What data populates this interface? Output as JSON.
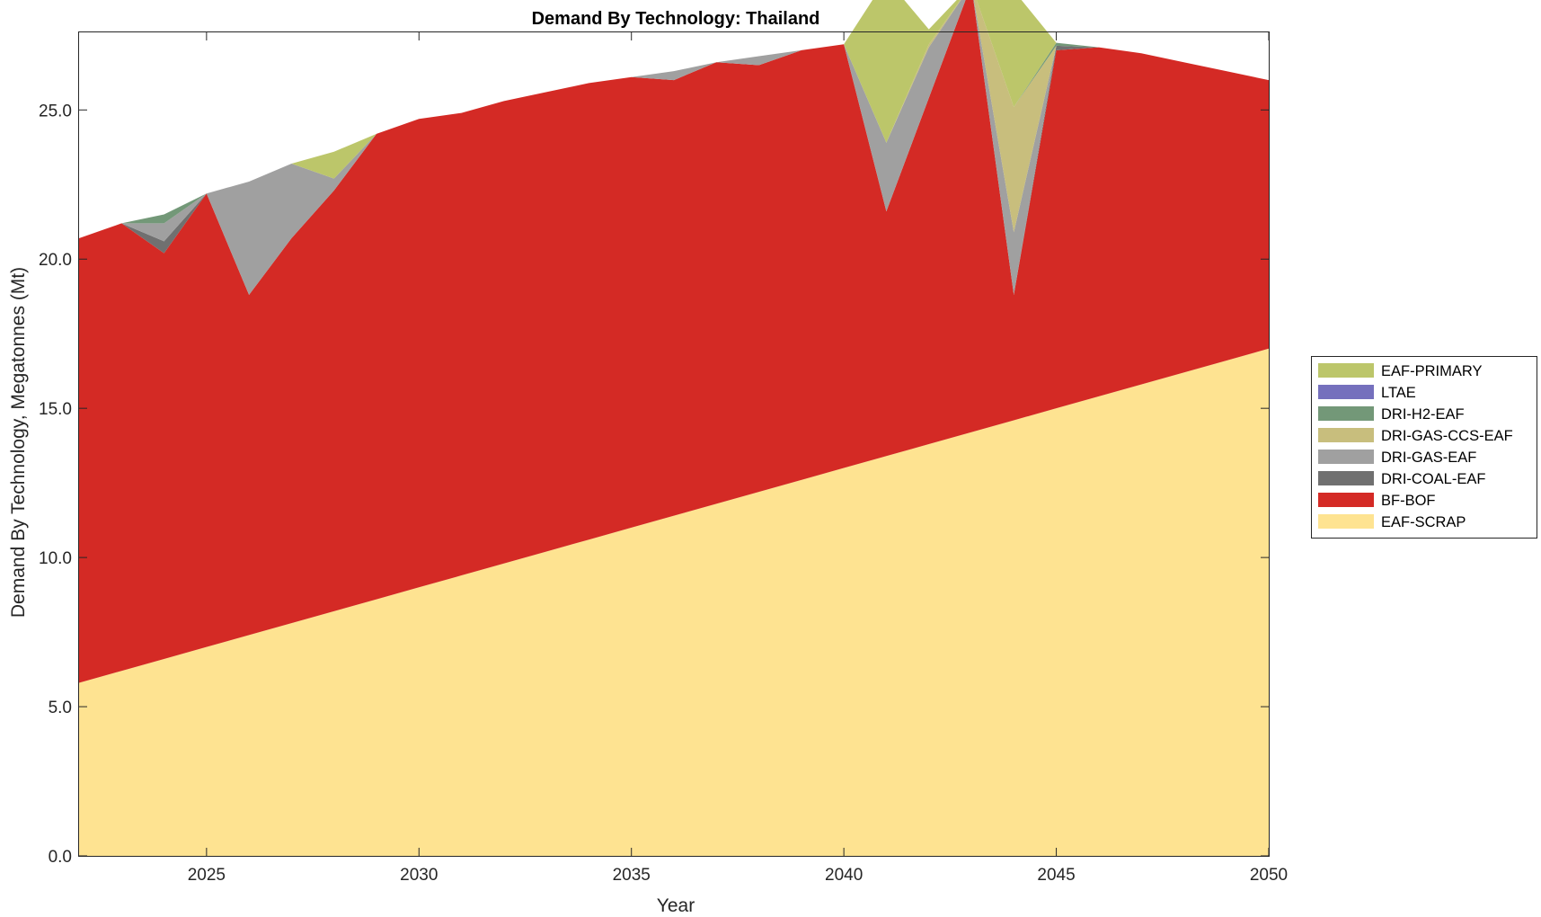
{
  "chart_data": {
    "type": "area",
    "stacked": true,
    "title": "Demand By Technology: Thailand",
    "xlabel": "Year",
    "ylabel": "Demand By Technology, Megatonnes (Mt)",
    "xlim": [
      2022,
      2050
    ],
    "ylim": [
      0,
      27.6
    ],
    "xticks": [
      2025,
      2030,
      2035,
      2040,
      2045,
      2050
    ],
    "yticks": [
      0,
      5,
      10,
      15,
      20,
      25
    ],
    "ytick_labels": [
      "0.0",
      "5.0",
      "10.0",
      "15.0",
      "20.0",
      "25.0"
    ],
    "grid": false,
    "legend_position": "right",
    "x": [
      2022,
      2023,
      2024,
      2025,
      2026,
      2027,
      2028,
      2029,
      2030,
      2031,
      2032,
      2033,
      2034,
      2035,
      2036,
      2037,
      2038,
      2039,
      2040,
      2041,
      2042,
      2043,
      2044,
      2045,
      2046,
      2047,
      2048,
      2049,
      2050
    ],
    "series": [
      {
        "name": "EAF-SCRAP",
        "color": "#FEE391",
        "values": [
          5.8,
          6.2,
          6.6,
          7.0,
          7.4,
          7.8,
          8.2,
          8.6,
          9.0,
          9.4,
          9.8,
          10.2,
          10.6,
          11.0,
          11.4,
          11.8,
          12.2,
          12.6,
          13.0,
          13.4,
          13.8,
          14.2,
          14.6,
          15.0,
          15.4,
          15.8,
          16.2,
          16.6,
          17.0
        ]
      },
      {
        "name": "BF-BOF",
        "color": "#D42A25",
        "values": [
          14.9,
          15.0,
          13.6,
          15.2,
          11.4,
          12.9,
          14.1,
          15.6,
          15.7,
          15.5,
          15.5,
          15.4,
          15.3,
          15.1,
          14.6,
          14.8,
          14.3,
          14.4,
          14.2,
          8.2,
          11.6,
          15.0,
          4.2,
          12.0,
          11.7,
          11.1,
          10.4,
          9.7,
          9.0
        ]
      },
      {
        "name": "DRI-COAL-EAF",
        "color": "#707070",
        "values": [
          0,
          0,
          0.4,
          0,
          0,
          0,
          0,
          0,
          0,
          0,
          0,
          0,
          0,
          0,
          0,
          0,
          0,
          0,
          0,
          0,
          0,
          0,
          0,
          0.15,
          0,
          0,
          0,
          0,
          0
        ]
      },
      {
        "name": "DRI-GAS-EAF",
        "color": "#A0A0A0",
        "values": [
          0,
          0,
          0.6,
          0,
          3.8,
          2.5,
          0.4,
          0,
          0,
          0,
          0,
          0,
          0,
          0,
          0.3,
          0,
          0.3,
          0,
          0,
          2.3,
          1.7,
          0,
          2.1,
          0,
          0,
          0,
          0,
          0,
          0
        ]
      },
      {
        "name": "DRI-GAS-CCS-EAF",
        "color": "#C8BE7D",
        "values": [
          0,
          0,
          0,
          0,
          0,
          0,
          0,
          0,
          0,
          0,
          0,
          0,
          0,
          0,
          0,
          0,
          0,
          0,
          0,
          0,
          0.1,
          0,
          4.2,
          0,
          0,
          0,
          0,
          0,
          0
        ]
      },
      {
        "name": "DRI-H2-EAF",
        "color": "#739878",
        "values": [
          0,
          0,
          0.3,
          0,
          0,
          0,
          0,
          0,
          0,
          0,
          0,
          0,
          0,
          0,
          0,
          0,
          0,
          0,
          0,
          0,
          0,
          0,
          0,
          0.1,
          0,
          0,
          0,
          0,
          0
        ]
      },
      {
        "name": "LTAE",
        "color": "#7570BD",
        "values": [
          0,
          0,
          0,
          0,
          0,
          0,
          0,
          0,
          0,
          0,
          0,
          0,
          0,
          0,
          0,
          0,
          0,
          0,
          0,
          0,
          0,
          0,
          0,
          0,
          0,
          0,
          0,
          0,
          0
        ]
      },
      {
        "name": "EAF-PRIMARY",
        "color": "#BCC66A",
        "values": [
          0,
          0,
          0,
          0,
          0,
          0,
          0.9,
          0,
          0,
          0,
          0,
          0,
          0,
          0,
          0,
          0,
          0,
          0,
          0,
          5.5,
          0.5,
          0,
          3.9,
          0,
          0,
          0,
          0,
          0,
          0
        ]
      }
    ]
  }
}
